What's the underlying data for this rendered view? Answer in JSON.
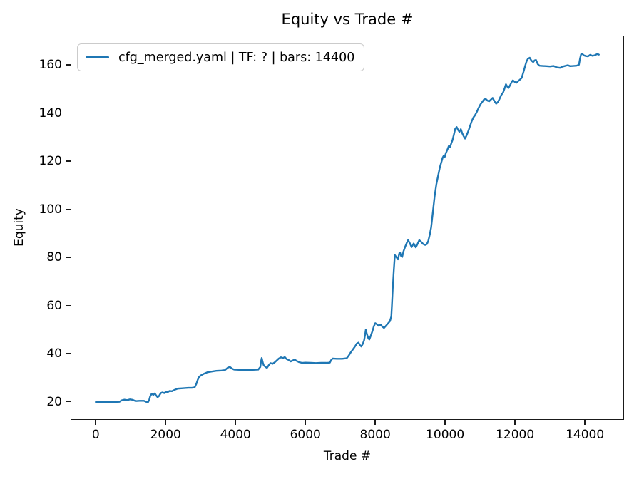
{
  "chart_data": {
    "type": "line",
    "title": "Equity vs Trade #",
    "xlabel": "Trade #",
    "ylabel": "Equity",
    "xlim": [
      -720,
      15120
    ],
    "ylim": [
      12.5,
      172.2
    ],
    "xticks": [
      0,
      2000,
      4000,
      6000,
      8000,
      10000,
      12000,
      14000
    ],
    "yticks": [
      20,
      40,
      60,
      80,
      100,
      120,
      140,
      160
    ],
    "grid": false,
    "legend_position": "upper left",
    "series": [
      {
        "name": "cfg_merged.yaml | TF: ? | bars: 14400",
        "color": "#1f77b4",
        "points": [
          [
            0,
            19.9
          ],
          [
            200,
            19.9
          ],
          [
            450,
            19.9
          ],
          [
            680,
            20.0
          ],
          [
            740,
            20.6
          ],
          [
            820,
            20.9
          ],
          [
            900,
            20.7
          ],
          [
            980,
            21.0
          ],
          [
            1060,
            20.8
          ],
          [
            1140,
            20.3
          ],
          [
            1250,
            20.4
          ],
          [
            1380,
            20.4
          ],
          [
            1440,
            20.0
          ],
          [
            1500,
            19.9
          ],
          [
            1530,
            20.8
          ],
          [
            1560,
            22.4
          ],
          [
            1600,
            23.3
          ],
          [
            1650,
            22.9
          ],
          [
            1690,
            23.5
          ],
          [
            1730,
            22.6
          ],
          [
            1770,
            21.9
          ],
          [
            1810,
            22.4
          ],
          [
            1860,
            23.6
          ],
          [
            1910,
            23.9
          ],
          [
            1960,
            23.6
          ],
          [
            2010,
            24.2
          ],
          [
            2060,
            24.0
          ],
          [
            2110,
            24.5
          ],
          [
            2180,
            24.4
          ],
          [
            2260,
            25.0
          ],
          [
            2350,
            25.5
          ],
          [
            2450,
            25.6
          ],
          [
            2550,
            25.7
          ],
          [
            2650,
            25.8
          ],
          [
            2750,
            25.8
          ],
          [
            2830,
            26.0
          ],
          [
            2880,
            27.5
          ],
          [
            2920,
            29.2
          ],
          [
            2960,
            30.4
          ],
          [
            3010,
            31.0
          ],
          [
            3100,
            31.7
          ],
          [
            3200,
            32.3
          ],
          [
            3320,
            32.6
          ],
          [
            3450,
            32.9
          ],
          [
            3600,
            33.0
          ],
          [
            3700,
            33.2
          ],
          [
            3780,
            34.2
          ],
          [
            3840,
            34.5
          ],
          [
            3900,
            33.8
          ],
          [
            3960,
            33.4
          ],
          [
            4100,
            33.3
          ],
          [
            4300,
            33.3
          ],
          [
            4500,
            33.3
          ],
          [
            4650,
            33.4
          ],
          [
            4710,
            34.5
          ],
          [
            4730,
            36.8
          ],
          [
            4750,
            38.2
          ],
          [
            4780,
            36.4
          ],
          [
            4810,
            35.1
          ],
          [
            4860,
            34.5
          ],
          [
            4900,
            34.1
          ],
          [
            4950,
            35.2
          ],
          [
            5000,
            36.1
          ],
          [
            5060,
            35.8
          ],
          [
            5120,
            36.4
          ],
          [
            5180,
            37.2
          ],
          [
            5240,
            38.0
          ],
          [
            5300,
            38.5
          ],
          [
            5360,
            38.2
          ],
          [
            5410,
            38.6
          ],
          [
            5460,
            37.8
          ],
          [
            5520,
            37.4
          ],
          [
            5580,
            36.8
          ],
          [
            5640,
            37.2
          ],
          [
            5690,
            37.6
          ],
          [
            5750,
            37.0
          ],
          [
            5820,
            36.5
          ],
          [
            5900,
            36.2
          ],
          [
            6000,
            36.3
          ],
          [
            6150,
            36.2
          ],
          [
            6300,
            36.1
          ],
          [
            6450,
            36.2
          ],
          [
            6600,
            36.2
          ],
          [
            6700,
            36.3
          ],
          [
            6740,
            37.4
          ],
          [
            6780,
            38.0
          ],
          [
            6900,
            37.9
          ],
          [
            7050,
            37.9
          ],
          [
            7180,
            38.1
          ],
          [
            7240,
            39.2
          ],
          [
            7300,
            40.6
          ],
          [
            7360,
            41.8
          ],
          [
            7420,
            43.0
          ],
          [
            7470,
            44.2
          ],
          [
            7520,
            44.6
          ],
          [
            7560,
            43.6
          ],
          [
            7600,
            43.0
          ],
          [
            7640,
            44.0
          ],
          [
            7680,
            45.5
          ],
          [
            7710,
            48.0
          ],
          [
            7730,
            50.0
          ],
          [
            7760,
            48.2
          ],
          [
            7800,
            46.5
          ],
          [
            7830,
            45.9
          ],
          [
            7870,
            47.4
          ],
          [
            7920,
            49.4
          ],
          [
            7960,
            51.4
          ],
          [
            8000,
            52.7
          ],
          [
            8050,
            52.2
          ],
          [
            8100,
            51.6
          ],
          [
            8150,
            52.1
          ],
          [
            8200,
            51.3
          ],
          [
            8250,
            50.7
          ],
          [
            8300,
            51.5
          ],
          [
            8360,
            52.5
          ],
          [
            8420,
            53.5
          ],
          [
            8460,
            55.5
          ],
          [
            8480,
            61.0
          ],
          [
            8500,
            67.0
          ],
          [
            8530,
            74.5
          ],
          [
            8560,
            81.0
          ],
          [
            8610,
            80.0
          ],
          [
            8650,
            79.2
          ],
          [
            8690,
            81.8
          ],
          [
            8710,
            82.0
          ],
          [
            8740,
            80.6
          ],
          [
            8770,
            80.2
          ],
          [
            8810,
            82.6
          ],
          [
            8860,
            84.6
          ],
          [
            8900,
            86.0
          ],
          [
            8940,
            87.2
          ],
          [
            8990,
            85.9
          ],
          [
            9040,
            84.3
          ],
          [
            9100,
            85.8
          ],
          [
            9160,
            84.2
          ],
          [
            9210,
            85.6
          ],
          [
            9260,
            87.2
          ],
          [
            9320,
            86.4
          ],
          [
            9370,
            85.6
          ],
          [
            9430,
            85.2
          ],
          [
            9480,
            85.6
          ],
          [
            9520,
            87.0
          ],
          [
            9560,
            89.5
          ],
          [
            9600,
            92.5
          ],
          [
            9650,
            99.0
          ],
          [
            9700,
            105.5
          ],
          [
            9750,
            110.5
          ],
          [
            9800,
            114.0
          ],
          [
            9850,
            117.5
          ],
          [
            9890,
            119.5
          ],
          [
            9930,
            121.5
          ],
          [
            9960,
            122.3
          ],
          [
            9990,
            121.8
          ],
          [
            10020,
            123.3
          ],
          [
            10070,
            125.0
          ],
          [
            10110,
            126.5
          ],
          [
            10140,
            125.8
          ],
          [
            10180,
            127.6
          ],
          [
            10210,
            128.7
          ],
          [
            10250,
            131.0
          ],
          [
            10290,
            133.5
          ],
          [
            10330,
            134.2
          ],
          [
            10370,
            133.0
          ],
          [
            10410,
            132.2
          ],
          [
            10450,
            133.3
          ],
          [
            10490,
            131.6
          ],
          [
            10530,
            130.4
          ],
          [
            10570,
            129.4
          ],
          [
            10610,
            130.6
          ],
          [
            10660,
            132.4
          ],
          [
            10710,
            134.5
          ],
          [
            10760,
            136.6
          ],
          [
            10810,
            138.2
          ],
          [
            10860,
            139.2
          ],
          [
            10910,
            140.6
          ],
          [
            10960,
            142.2
          ],
          [
            11010,
            143.6
          ],
          [
            11060,
            144.6
          ],
          [
            11110,
            145.6
          ],
          [
            11160,
            145.9
          ],
          [
            11210,
            145.2
          ],
          [
            11260,
            144.9
          ],
          [
            11310,
            145.6
          ],
          [
            11360,
            146.3
          ],
          [
            11410,
            145.0
          ],
          [
            11460,
            143.9
          ],
          [
            11510,
            144.6
          ],
          [
            11560,
            146.0
          ],
          [
            11610,
            147.6
          ],
          [
            11660,
            148.6
          ],
          [
            11710,
            150.6
          ],
          [
            11740,
            152.0
          ],
          [
            11780,
            151.0
          ],
          [
            11810,
            150.4
          ],
          [
            11860,
            151.6
          ],
          [
            11910,
            153.1
          ],
          [
            11940,
            153.6
          ],
          [
            11990,
            153.0
          ],
          [
            12040,
            152.6
          ],
          [
            12090,
            153.3
          ],
          [
            12140,
            153.9
          ],
          [
            12190,
            154.6
          ],
          [
            12240,
            157.0
          ],
          [
            12290,
            159.6
          ],
          [
            12330,
            161.5
          ],
          [
            12370,
            162.6
          ],
          [
            12420,
            163.0
          ],
          [
            12470,
            161.8
          ],
          [
            12520,
            161.2
          ],
          [
            12560,
            161.9
          ],
          [
            12600,
            162.1
          ],
          [
            12650,
            160.4
          ],
          [
            12700,
            159.7
          ],
          [
            12800,
            159.6
          ],
          [
            12900,
            159.5
          ],
          [
            13000,
            159.4
          ],
          [
            13100,
            159.6
          ],
          [
            13200,
            159.0
          ],
          [
            13290,
            158.8
          ],
          [
            13350,
            159.3
          ],
          [
            13430,
            159.6
          ],
          [
            13510,
            159.9
          ],
          [
            13580,
            159.5
          ],
          [
            13660,
            159.6
          ],
          [
            13760,
            159.7
          ],
          [
            13830,
            160.1
          ],
          [
            13860,
            162.6
          ],
          [
            13890,
            164.4
          ],
          [
            13920,
            164.7
          ],
          [
            13970,
            164.0
          ],
          [
            14030,
            163.7
          ],
          [
            14090,
            163.6
          ],
          [
            14150,
            164.2
          ],
          [
            14220,
            163.8
          ],
          [
            14290,
            164.1
          ],
          [
            14360,
            164.6
          ],
          [
            14400,
            164.3
          ]
        ]
      }
    ]
  },
  "legend": {
    "label": "cfg_merged.yaml | TF: ? | bars: 14400",
    "line_color": "#1f77b4"
  },
  "style": {
    "line_color": "#1f77b4",
    "spine_color": "#1a1a1a",
    "background": "#ffffff"
  }
}
